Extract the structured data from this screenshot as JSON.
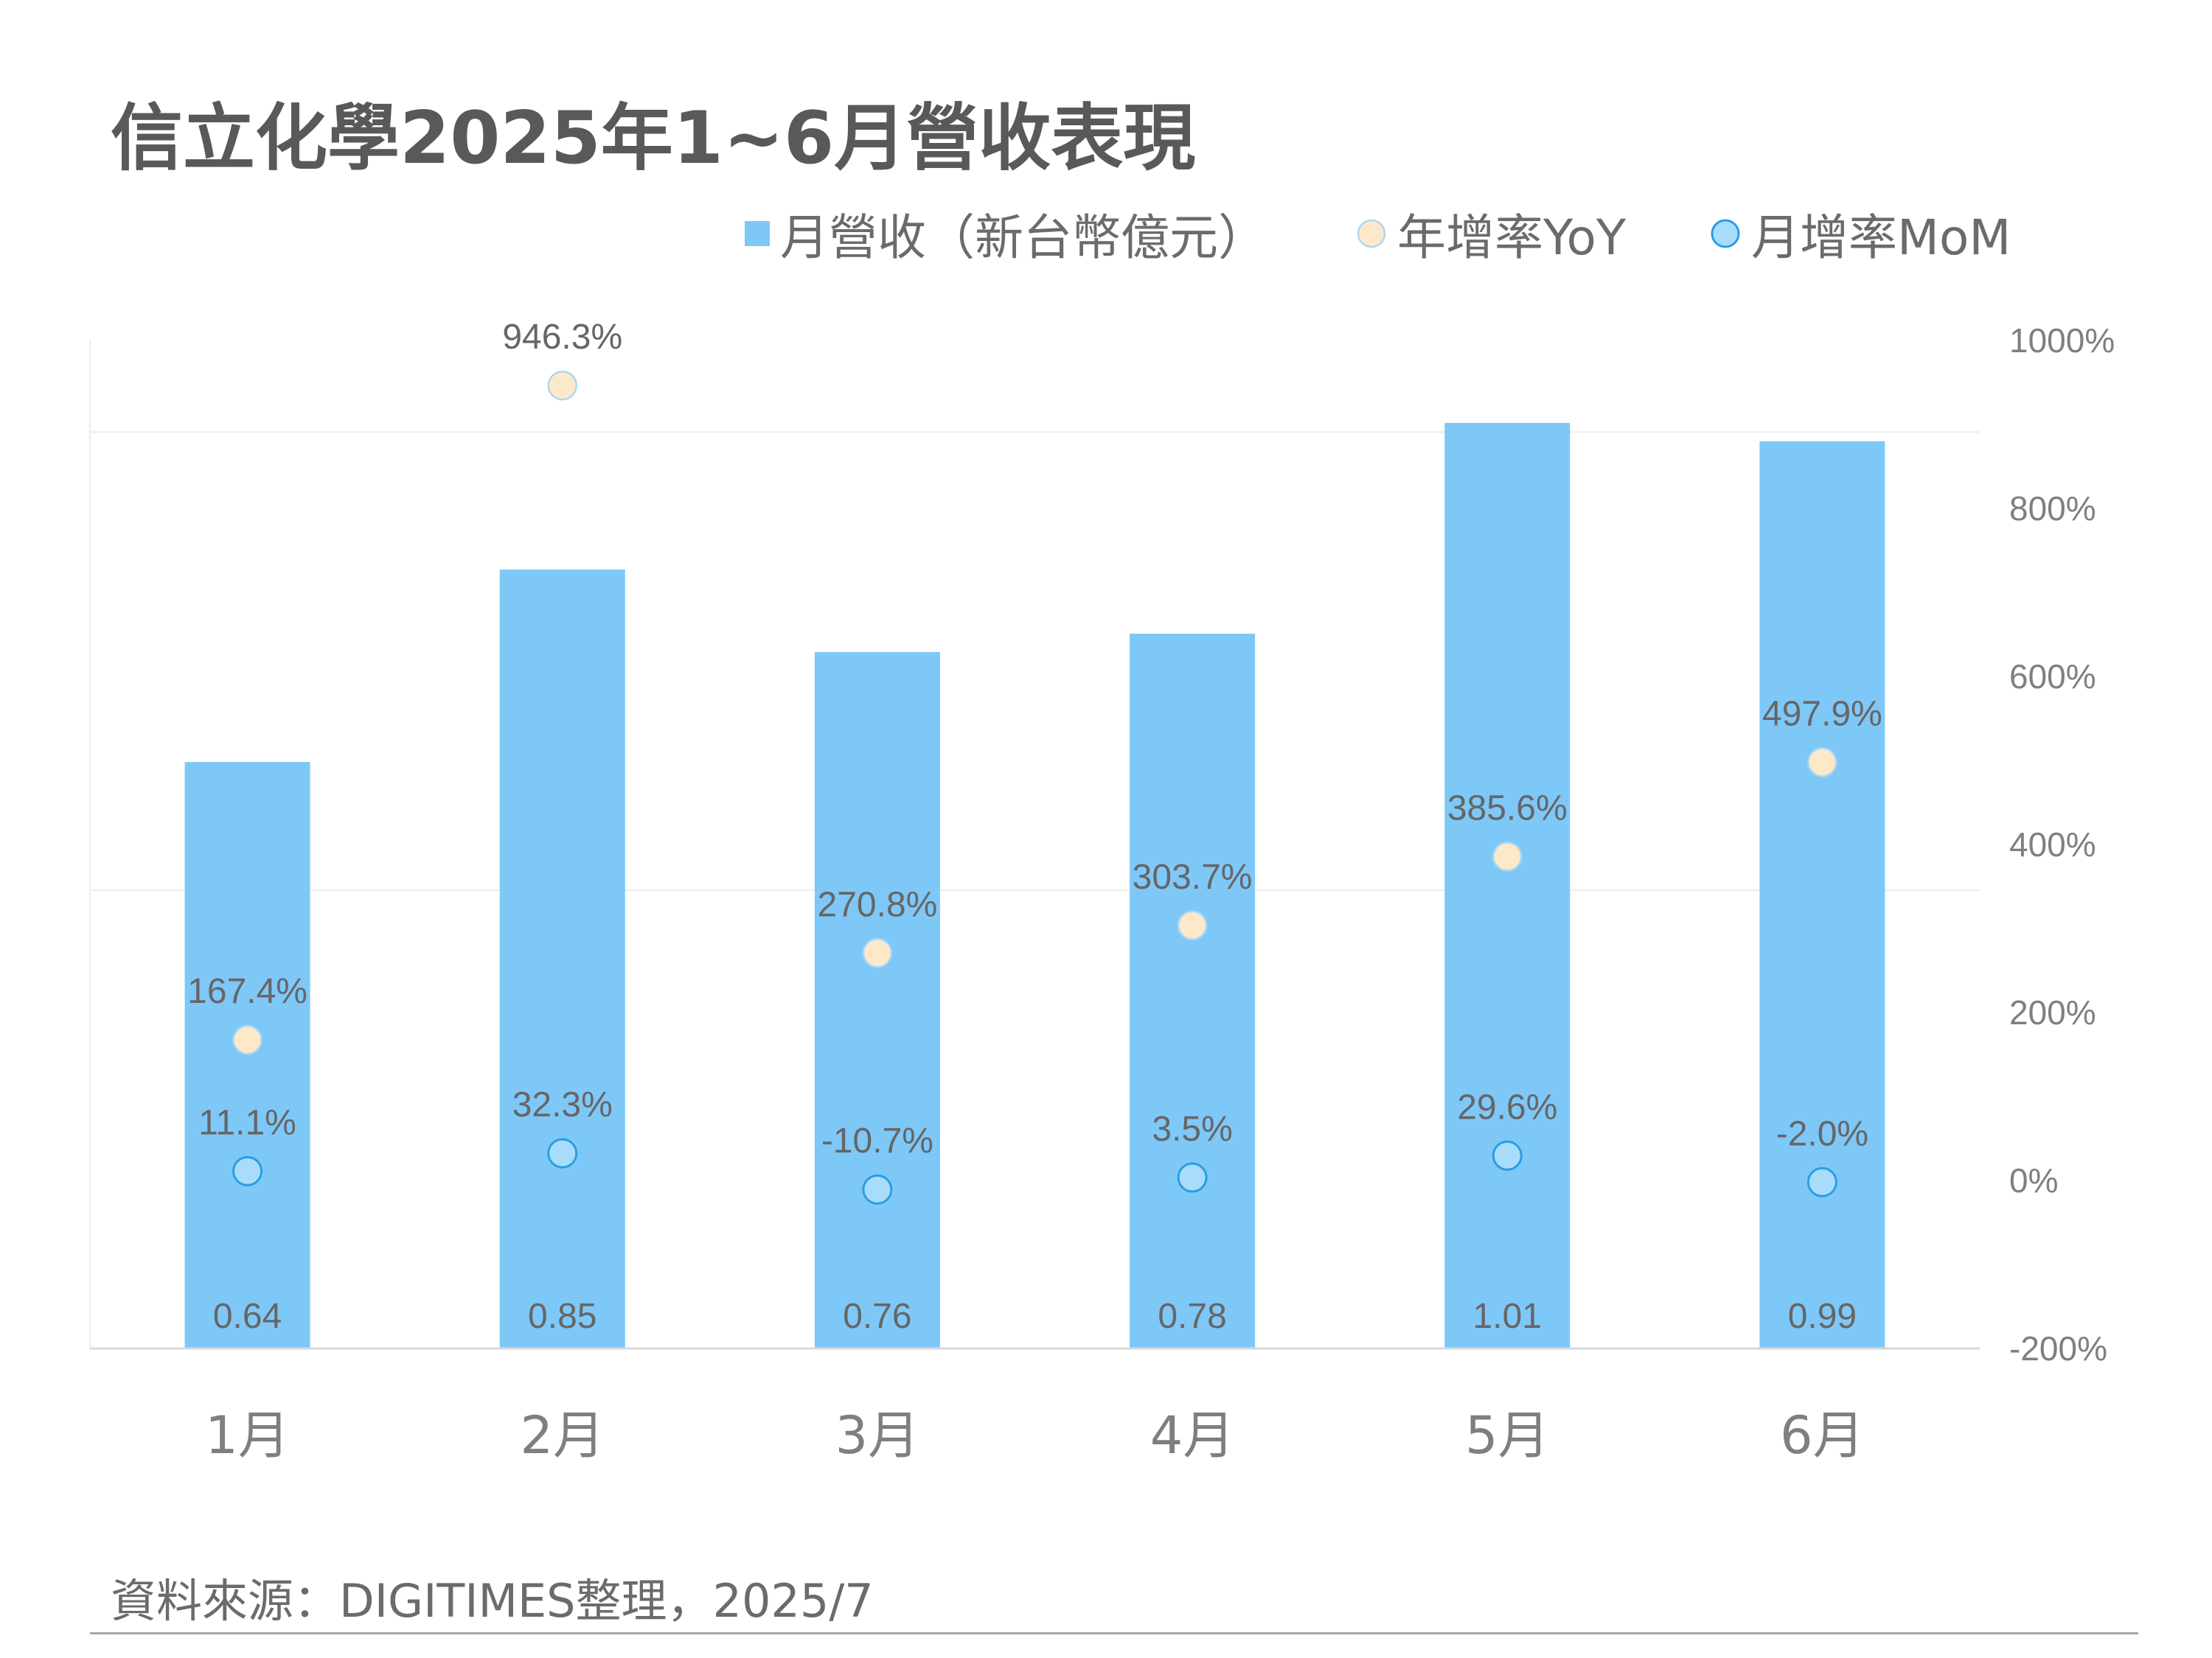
{
  "chart_data": {
    "type": "bar",
    "title": "信立化學2025年1~6月營收表現",
    "source": "資料來源：DIGITIMES整理，2025/7",
    "categories": [
      "1月",
      "2月",
      "3月",
      "4月",
      "5月",
      "6月"
    ],
    "series": [
      {
        "name": "月營收（新台幣億元）",
        "type": "bar",
        "axis": "left",
        "values": [
          0.64,
          0.85,
          0.76,
          0.78,
          1.01,
          0.99
        ],
        "labels": [
          "0.64",
          "0.85",
          "0.76",
          "0.78",
          "1.01",
          "0.99"
        ]
      },
      {
        "name": "年增率YoY",
        "type": "scatter",
        "axis": "right",
        "values": [
          167.4,
          946.3,
          270.8,
          303.7,
          385.6,
          497.9
        ],
        "labels": [
          "167.4%",
          "946.3%",
          "270.8%",
          "303.7%",
          "385.6%",
          "497.9%"
        ]
      },
      {
        "name": "月增率MoM",
        "type": "scatter",
        "axis": "right",
        "values": [
          11.1,
          32.3,
          -10.7,
          3.5,
          29.6,
          -2.0
        ],
        "labels": [
          "11.1%",
          "32.3%",
          "-10.7%",
          "3.5%",
          "29.6%",
          "-2.0%"
        ]
      }
    ],
    "y_left": {
      "min": 0,
      "max": 1.1,
      "gridlines": [
        0.5,
        1.0
      ],
      "tick_labels_shown": false
    },
    "y_right": {
      "min": -200,
      "max": 1000,
      "ticks": [
        1000,
        800,
        600,
        400,
        200,
        0,
        -200
      ],
      "tick_labels": [
        "1000%",
        "800%",
        "600%",
        "400%",
        "200%",
        "0%",
        "-200%"
      ]
    },
    "legend_position": "top-right",
    "colors": {
      "bar": "#7ec8f8",
      "yoy_fill": "#fde9c9",
      "yoy_stroke": "#a9d7f5",
      "mom_fill": "#a9dcfb",
      "mom_stroke": "#2a9ee2"
    }
  }
}
